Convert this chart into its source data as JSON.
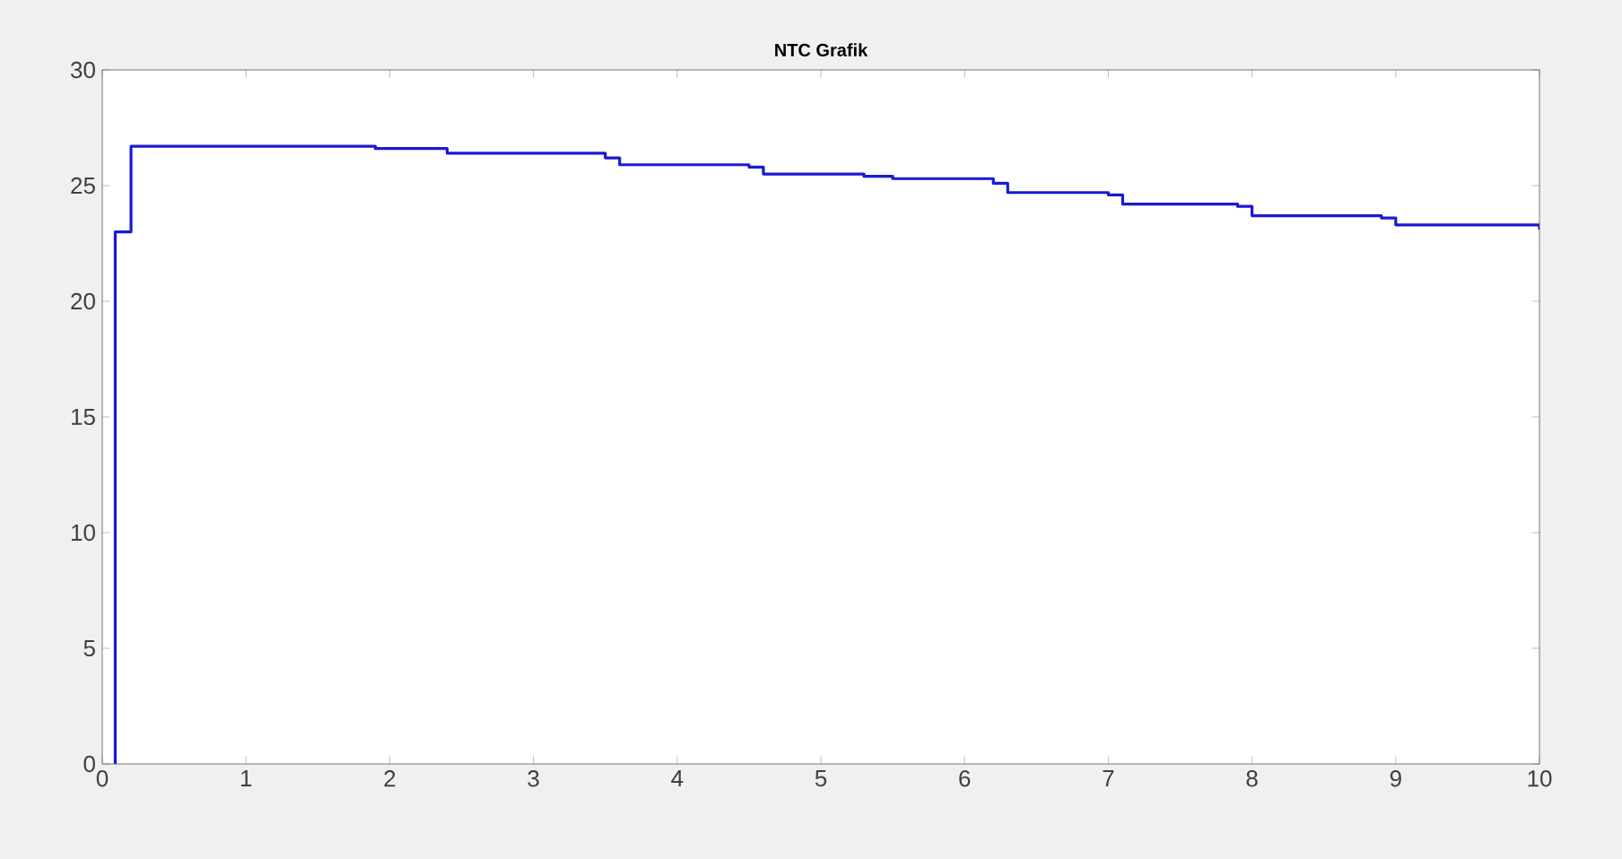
{
  "chart_data": {
    "type": "step",
    "title": "NTC Grafik",
    "x": [
      0.08,
      0.09,
      0.2,
      1.9,
      2.4,
      3.5,
      3.6,
      4.5,
      4.6,
      5.3,
      5.5,
      6.2,
      6.3,
      7.0,
      7.1,
      7.9,
      8.0,
      8.9,
      9.0,
      9.8,
      10
    ],
    "values": [
      0,
      23,
      26.7,
      26.6,
      26.4,
      26.2,
      25.9,
      25.8,
      25.5,
      25.4,
      25.3,
      25.1,
      24.7,
      24.6,
      24.2,
      24.1,
      23.7,
      23.6,
      23.3,
      23.3,
      23.1
    ],
    "color": "#1a1ad0",
    "xlim": [
      0,
      10
    ],
    "xticks": [
      0,
      1,
      2,
      3,
      4,
      5,
      6,
      7,
      8,
      9,
      10
    ],
    "ylim": [
      0,
      30
    ],
    "yticks": [
      0,
      5,
      10,
      15,
      20,
      25,
      30
    ],
    "marker": "none",
    "line_style": "solid",
    "grid": false
  }
}
